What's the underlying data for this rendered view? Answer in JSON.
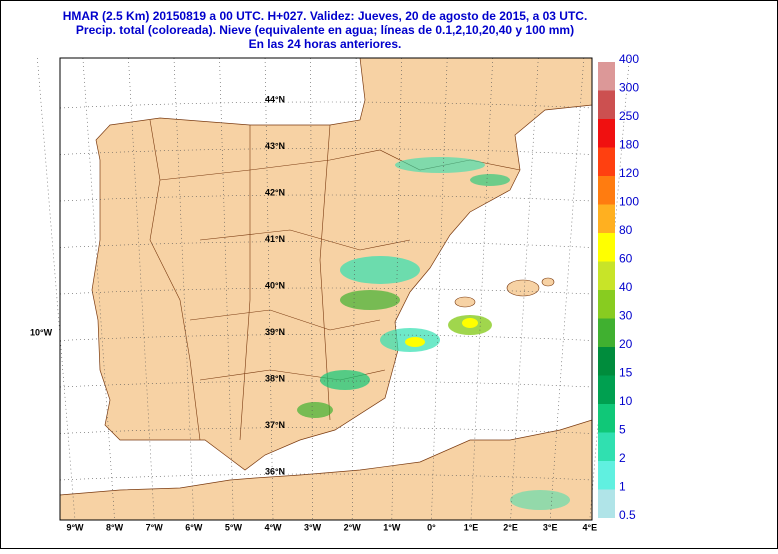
{
  "header": {
    "lines": [
      "HMAR (2.5 Km) 20150819 a 00 UTC.  H+027. Validez: Jueves, 20 de agosto de 2015,  a  03 UTC.",
      "Precip. total (coloreada). Nieve (equivalente en agua; líneas de 0.1,2,10,20,40 y 100 mm)",
      "En las 24 horas anteriores."
    ]
  },
  "map": {
    "latitude_labels": [
      "44°N",
      "43°N",
      "42°N",
      "41°N",
      "40°N",
      "39°N",
      "38°N",
      "37°N",
      "36°N"
    ],
    "longitude_labels": [
      "9°W",
      "8°W",
      "7°W",
      "6°W",
      "5°W",
      "4°W",
      "3°W",
      "2°W",
      "1°W",
      "0°",
      "1°E",
      "2°E",
      "3°E",
      "4°E"
    ],
    "side_label": "10°W"
  },
  "colorbar": {
    "levels": [
      0.5,
      1,
      2,
      5,
      10,
      15,
      20,
      30,
      40,
      60,
      80,
      100,
      120,
      180,
      250,
      300,
      400
    ],
    "colors": [
      "#b0e4e8",
      "#60f0e0",
      "#30e0b0",
      "#10c878",
      "#00a050",
      "#008c3c",
      "#40b030",
      "#88cc20",
      "#c8e428",
      "#ffff00",
      "#ffb020",
      "#ff7c10",
      "#ff4010",
      "#f01010",
      "#cc5050",
      "#dc9898",
      "#ecc8c8"
    ]
  }
}
